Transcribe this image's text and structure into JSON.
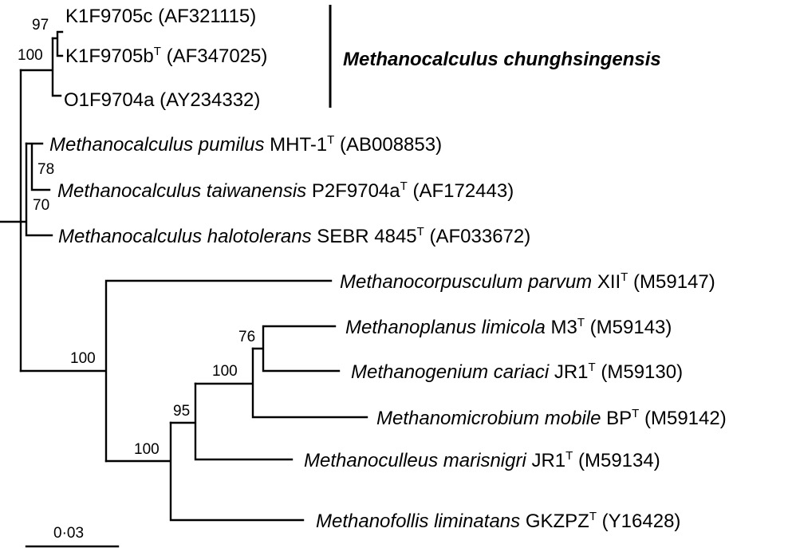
{
  "tree": {
    "clade_label": "Methanocalculus chunghsingensis",
    "scale_bar_label": "0·03",
    "leaves": [
      {
        "id": "k1f9705c",
        "genus": "",
        "species": "",
        "strain": "K1F9705c",
        "type_strain": false,
        "accession": "(AF321115)"
      },
      {
        "id": "k1f9705b",
        "genus": "",
        "species": "",
        "strain": "K1F9705b",
        "type_strain": true,
        "accession": "(AF347025)"
      },
      {
        "id": "o1f9704a",
        "genus": "",
        "species": "",
        "strain": "O1F9704a",
        "type_strain": false,
        "accession": "(AY234332)"
      },
      {
        "id": "pumilus",
        "genus": "Methanocalculus",
        "species": "pumilus",
        "strain": "MHT-1",
        "type_strain": true,
        "accession": "(AB008853)"
      },
      {
        "id": "taiwanensis",
        "genus": "Methanocalculus",
        "species": "taiwanensis",
        "strain": "P2F9704a",
        "type_strain": true,
        "accession": "(AF172443)"
      },
      {
        "id": "halotolerans",
        "genus": "Methanocalculus",
        "species": "halotolerans",
        "strain": "SEBR 4845",
        "type_strain": true,
        "accession": "(AF033672)"
      },
      {
        "id": "parvum",
        "genus": "Methanocorpusculum",
        "species": "parvum",
        "strain": "XII",
        "type_strain": true,
        "accession": "(M59147)"
      },
      {
        "id": "limicola",
        "genus": "Methanoplanus",
        "species": "limicola",
        "strain": "M3",
        "type_strain": true,
        "accession": "(M59143)"
      },
      {
        "id": "cariaci",
        "genus": "Methanogenium",
        "species": "cariaci",
        "strain": "JR1",
        "type_strain": true,
        "accession": "(M59130)"
      },
      {
        "id": "mobile",
        "genus": "Methanomicrobium",
        "species": "mobile",
        "strain": "BP",
        "type_strain": true,
        "accession": "(M59142)"
      },
      {
        "id": "marisnigri",
        "genus": "Methanoculleus",
        "species": "marisnigri",
        "strain": "JR1",
        "type_strain": true,
        "accession": "(M59134)"
      },
      {
        "id": "liminatans",
        "genus": "Methanofollis",
        "species": "liminatans",
        "strain": "GKZPZ",
        "type_strain": true,
        "accession": "(Y16428)"
      }
    ],
    "type_strain_mark": "T",
    "bootstrap": {
      "k1f_pair": "97",
      "chunghsingensis": "100",
      "pumilus_taiwanensis": "78",
      "calculus_inner": "70",
      "other_genera": "100",
      "limicola_cariaci": "76",
      "with_mobile": "100",
      "with_marisnigri": "95",
      "with_liminatans": "100"
    }
  }
}
